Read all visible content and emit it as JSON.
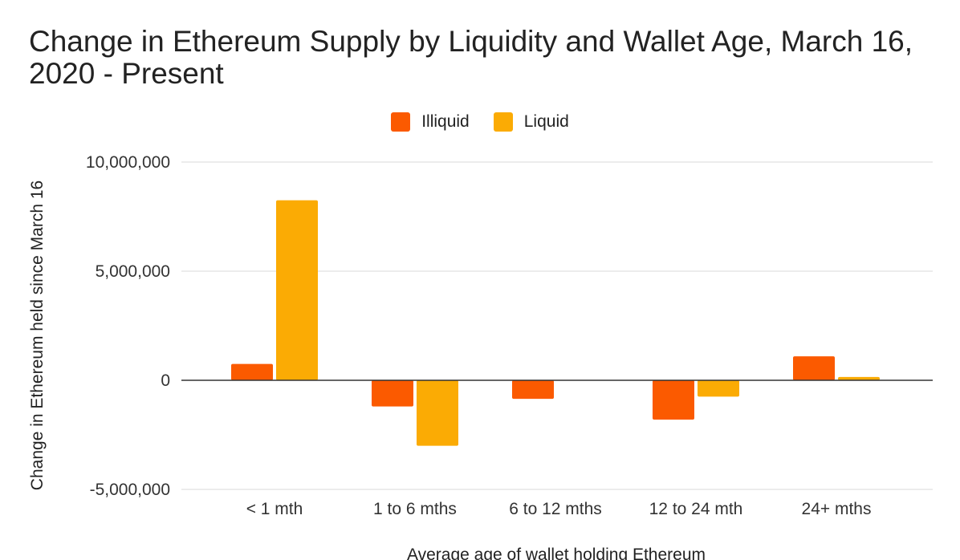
{
  "chart_data": {
    "type": "bar",
    "title": "Change in Ethereum Supply by Liquidity and Wallet Age, March 16, 2020 - Present",
    "xlabel": "Average age of wallet holding Ethereum",
    "ylabel": "Change in Ethereum held since March 16",
    "categories": [
      "< 1 mth",
      "1 to 6 mths",
      "6 to 12 mths",
      "12 to 24 mth",
      "24+ mths"
    ],
    "series": [
      {
        "name": "Illiquid",
        "color": "#fb5a00",
        "values": [
          750000,
          -1200000,
          -850000,
          -1800000,
          1100000
        ]
      },
      {
        "name": "Liquid",
        "color": "#fbab04",
        "values": [
          8250000,
          -3000000,
          0,
          -750000,
          150000
        ]
      }
    ],
    "ylim": [
      -5000000,
      10000000
    ],
    "yticks": [
      10000000,
      5000000,
      0,
      -5000000
    ],
    "ytick_labels": [
      "10,000,000",
      "5,000,000",
      "0",
      "-5,000,000"
    ],
    "grid": true,
    "legend_position": "top-center"
  }
}
